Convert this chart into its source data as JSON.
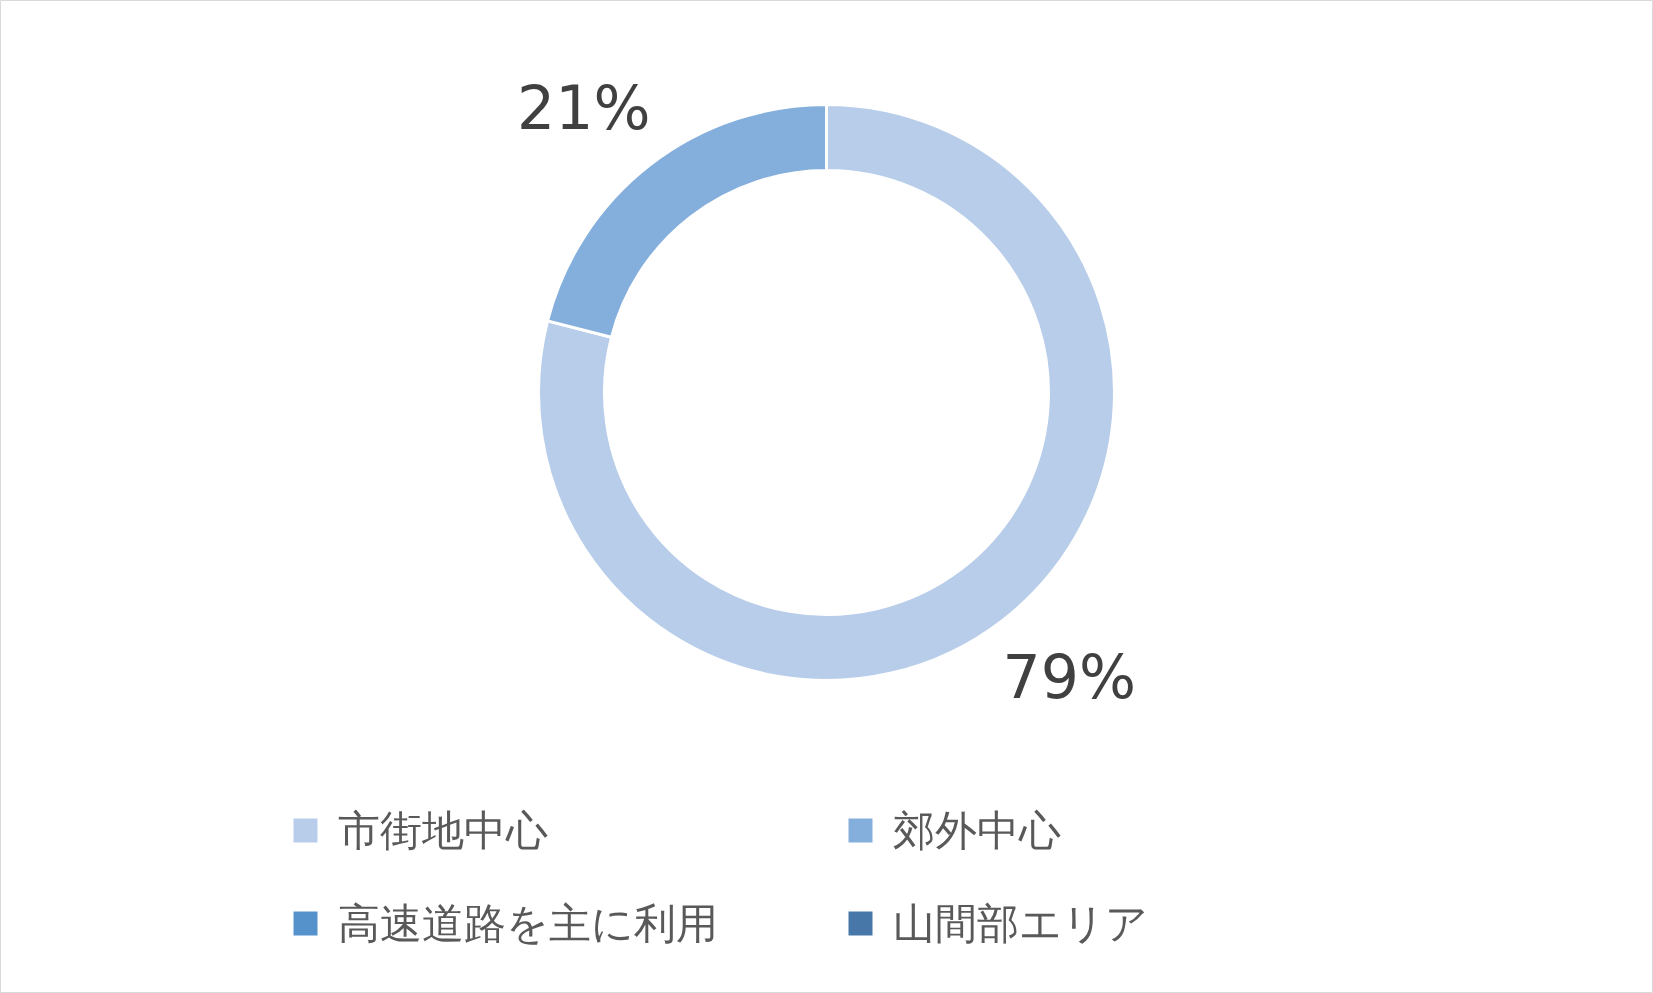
{
  "chart_data": {
    "type": "donut",
    "categories": [
      "市街地中心",
      "郊外中心",
      "高速道路を主に利用",
      "山間部エリア"
    ],
    "values": [
      79,
      21,
      0,
      0
    ],
    "colors": [
      "#b8cde9",
      "#84afdc",
      "#5592cc",
      "#4677a8"
    ],
    "value_labels": [
      "79%",
      "21%",
      null,
      null
    ],
    "legend": "bottom"
  }
}
